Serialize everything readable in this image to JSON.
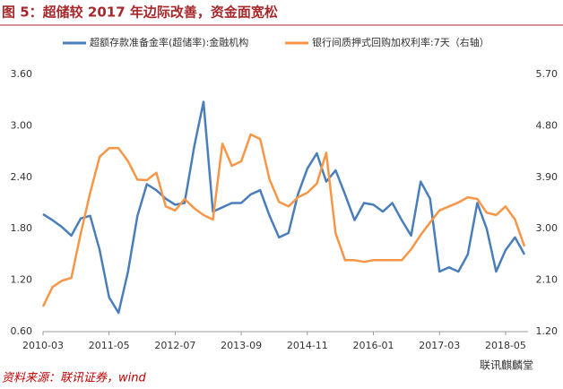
{
  "chart_data": {
    "type": "line",
    "title": "图 5：超储较 2017 年边际改善，资金面宽松",
    "source": "资料来源：联讯证券，wind",
    "watermark": "联讯麒麟堂",
    "categories": [
      "2010-03",
      null,
      null,
      null,
      null,
      null,
      null,
      "2011-05",
      null,
      null,
      null,
      null,
      null,
      null,
      "2012-07",
      null,
      null,
      null,
      null,
      null,
      null,
      "2013-09",
      null,
      null,
      null,
      null,
      null,
      null,
      "2014-11",
      null,
      null,
      null,
      null,
      null,
      null,
      "2016-01",
      null,
      null,
      null,
      null,
      null,
      null,
      "2017-03",
      null,
      null,
      null,
      null,
      null,
      null,
      "2018-05",
      null,
      null
    ],
    "series": [
      {
        "name": "超额存款准备金率(超储率):金融机构",
        "color": "#4a7ebb",
        "axis": "y",
        "values": [
          1.97,
          1.9,
          1.82,
          1.72,
          1.92,
          1.95,
          1.55,
          1.0,
          0.82,
          1.3,
          1.95,
          2.32,
          2.25,
          2.15,
          2.08,
          2.1,
          2.75,
          3.28,
          2.0,
          2.05,
          2.1,
          2.1,
          2.2,
          2.25,
          1.95,
          1.7,
          1.75,
          2.2,
          2.5,
          2.68,
          2.35,
          2.48,
          2.2,
          1.9,
          2.1,
          2.08,
          2.0,
          2.1,
          1.9,
          1.72,
          2.35,
          2.15,
          1.3,
          1.35,
          1.3,
          1.5,
          2.1,
          1.8,
          1.3,
          1.55,
          1.7,
          1.5
        ]
      },
      {
        "name": "银行间质押式回购加权利率:7天（右轴）",
        "color": "#f79646",
        "axis": "y2",
        "values": [
          1.64,
          1.98,
          2.09,
          2.14,
          2.92,
          3.63,
          4.26,
          4.41,
          4.41,
          4.18,
          3.86,
          3.85,
          3.98,
          3.39,
          3.32,
          3.52,
          3.36,
          3.24,
          3.16,
          4.49,
          4.1,
          4.18,
          4.65,
          4.57,
          3.86,
          3.47,
          3.39,
          3.55,
          3.63,
          3.79,
          4.33,
          2.92,
          2.45,
          2.45,
          2.42,
          2.45,
          2.45,
          2.45,
          2.45,
          2.64,
          2.89,
          3.11,
          3.32,
          3.39,
          3.46,
          3.55,
          3.52,
          3.28,
          3.24,
          3.39,
          3.16,
          2.69
        ]
      }
    ],
    "ylim": [
      0.6,
      3.6
    ],
    "yticks": [
      {
        "value": 0.6,
        "label": "0.60"
      },
      {
        "value": 1.2,
        "label": "1.20"
      },
      {
        "value": 1.8,
        "label": "1.80"
      },
      {
        "value": 2.4,
        "label": "2.40"
      },
      {
        "value": 3.0,
        "label": "3.00"
      },
      {
        "value": 3.6,
        "label": "3.60"
      }
    ],
    "y2lim": [
      1.2,
      5.7
    ],
    "y2ticks": [
      {
        "value": 1.2,
        "label": "1.20"
      },
      {
        "value": 2.1,
        "label": "2.10"
      },
      {
        "value": 3.0,
        "label": "3.00"
      },
      {
        "value": 3.9,
        "label": "3.90"
      },
      {
        "value": 4.8,
        "label": "4.80"
      },
      {
        "value": 5.7,
        "label": "5.70"
      }
    ],
    "grid": false
  }
}
